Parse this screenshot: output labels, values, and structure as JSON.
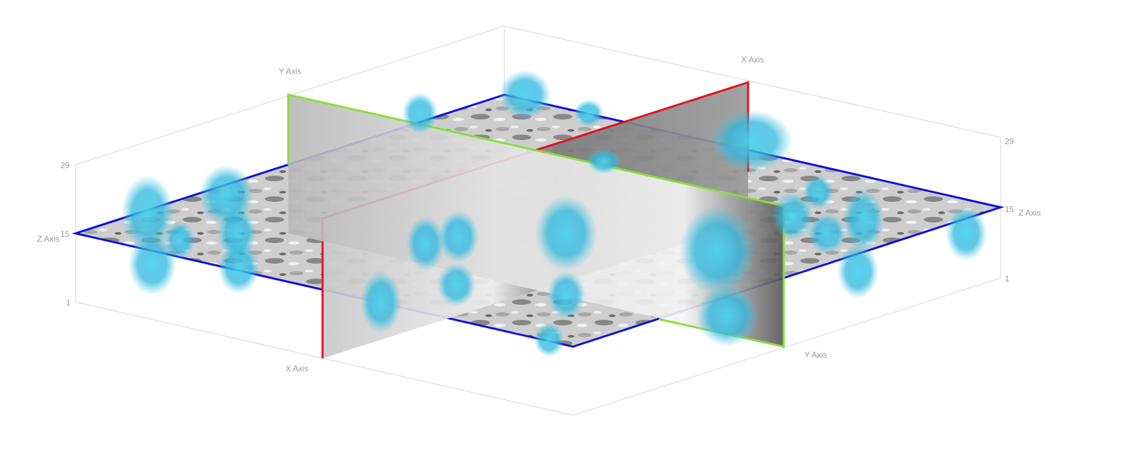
{
  "viewer": {
    "background": "#ffffff",
    "colors": {
      "box_lines": "#d6d6d6",
      "slice_z_outline": "#0a12d8",
      "slice_x_outline": "#e2121e",
      "slice_y_outline": "#8ddc3c",
      "blob": "#3fc8e6",
      "slice_light": "#e6e6e6",
      "slice_dark": "#3a3a3a"
    }
  },
  "axes": {
    "x_label": "X Axis",
    "y_label": "Y Axis",
    "z_label": "Z Axis",
    "z_ticks": [
      "29",
      "15",
      "1"
    ]
  }
}
